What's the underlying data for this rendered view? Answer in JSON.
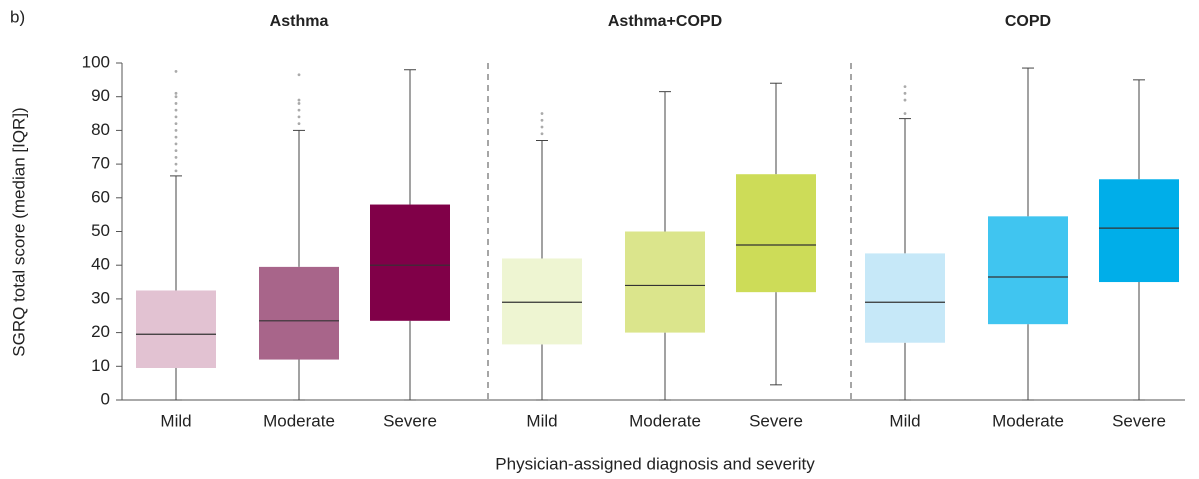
{
  "chart_data": {
    "type": "box",
    "panel_label": "b)",
    "y_label": "SGRQ total score (median [IQR])",
    "x_label": "Physician-assigned diagnosis and severity",
    "ylim": [
      0,
      100
    ],
    "yticks": [
      0,
      10,
      20,
      30,
      40,
      50,
      60,
      70,
      80,
      90,
      100
    ],
    "groups": [
      {
        "name": "Asthma",
        "boxes": [
          {
            "category": "Mild",
            "color": "#e2c2d2",
            "min": 0,
            "q1": 9.5,
            "median": 19.5,
            "q3": 32.5,
            "max": 66.5,
            "outliers": [
              68,
              70,
              72,
              74,
              76,
              78,
              80,
              82,
              84,
              86,
              88,
              90,
              91,
              97.5
            ]
          },
          {
            "category": "Moderate",
            "color": "#a8658a",
            "min": 0,
            "q1": 12,
            "median": 23.5,
            "q3": 39.5,
            "max": 80,
            "outliers": [
              82,
              84,
              86,
              88,
              89,
              96.5
            ]
          },
          {
            "category": "Severe",
            "color": "#800048",
            "min": 0,
            "q1": 23.5,
            "median": 40,
            "q3": 58,
            "max": 98,
            "outliers": []
          }
        ]
      },
      {
        "name": "Asthma+COPD",
        "boxes": [
          {
            "category": "Mild",
            "color": "#eef5d2",
            "min": 0,
            "q1": 16.5,
            "median": 29,
            "q3": 42,
            "max": 77,
            "outliers": [
              79,
              81,
              83,
              85
            ]
          },
          {
            "category": "Moderate",
            "color": "#dbe58c",
            "min": 0,
            "q1": 20,
            "median": 34,
            "q3": 50,
            "max": 91.5,
            "outliers": []
          },
          {
            "category": "Severe",
            "color": "#cddc58",
            "min": 4.5,
            "q1": 32,
            "median": 46,
            "q3": 67,
            "max": 94,
            "outliers": []
          }
        ]
      },
      {
        "name": "COPD",
        "boxes": [
          {
            "category": "Mild",
            "color": "#c6e8f8",
            "min": 0,
            "q1": 17,
            "median": 29,
            "q3": 43.5,
            "max": 83.5,
            "outliers": [
              85,
              89,
              91,
              93
            ]
          },
          {
            "category": "Moderate",
            "color": "#40c5f0",
            "min": 0,
            "q1": 22.5,
            "median": 36.5,
            "q3": 54.5,
            "max": 98.5,
            "outliers": []
          },
          {
            "category": "Severe",
            "color": "#00aee9",
            "min": 0,
            "q1": 35,
            "median": 51,
            "q3": 65.5,
            "max": 95,
            "outliers": []
          }
        ]
      }
    ]
  }
}
